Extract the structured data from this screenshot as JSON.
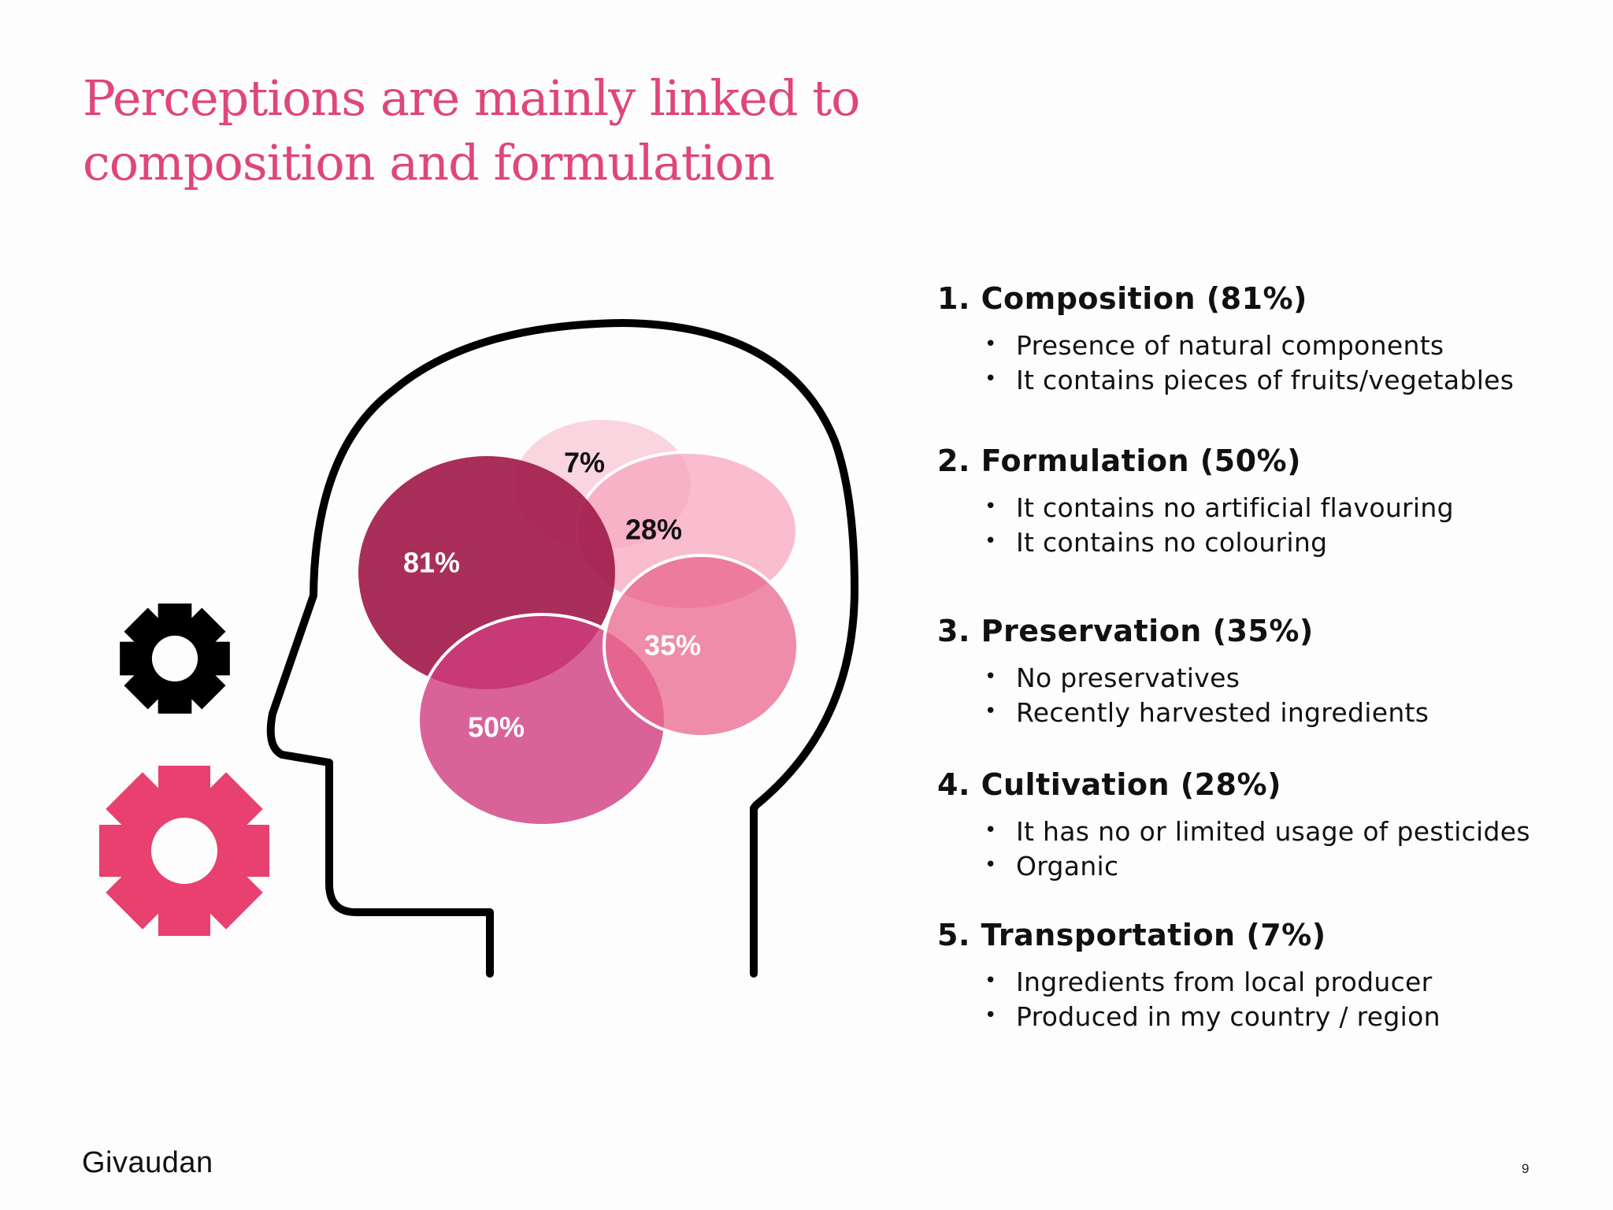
{
  "title_lines": [
    "Perceptions are mainly linked to",
    "composition and formulation"
  ],
  "chart_data": {
    "type": "bubble",
    "values": [
      {
        "name": "Composition",
        "value": 81,
        "label": "81%",
        "color": "#a01848",
        "label_color": "#ffffff"
      },
      {
        "name": "Formulation",
        "value": 50,
        "label": "50%",
        "color": "#cf3c80",
        "label_color": "#ffffff"
      },
      {
        "name": "Preservation",
        "value": 35,
        "label": "35%",
        "color": "#e8668e",
        "label_color": "#ffffff"
      },
      {
        "name": "Cultivation",
        "value": 28,
        "label": "28%",
        "color": "#f7a7bf",
        "label_color": "#111111"
      },
      {
        "name": "Transportation",
        "value": 7,
        "label": "7%",
        "color": "#f9cfdc",
        "label_color": "#111111"
      }
    ]
  },
  "factors": [
    {
      "heading": "1. Composition (81%)",
      "bullets": [
        "Presence of natural components",
        "It contains pieces of fruits/vegetables"
      ]
    },
    {
      "heading": "2. Formulation (50%)",
      "bullets": [
        "It contains no artificial flavouring",
        "It contains no colouring"
      ]
    },
    {
      "heading": "3. Preservation (35%)",
      "bullets": [
        "No preservatives",
        "Recently harvested ingredients"
      ]
    },
    {
      "heading": "4. Cultivation (28%)",
      "bullets": [
        "It has no or limited usage of pesticides",
        "Organic"
      ]
    },
    {
      "heading": "5. Transportation (7%)",
      "bullets": [
        "Ingredients from local producer",
        "Produced in my country / region"
      ]
    }
  ],
  "colors": {
    "accent": "#e0457b",
    "snowflake_dark": "#000000",
    "snowflake_pink": "#e8406f"
  },
  "footer": {
    "logo": "Givaudan",
    "page_number": "9"
  }
}
